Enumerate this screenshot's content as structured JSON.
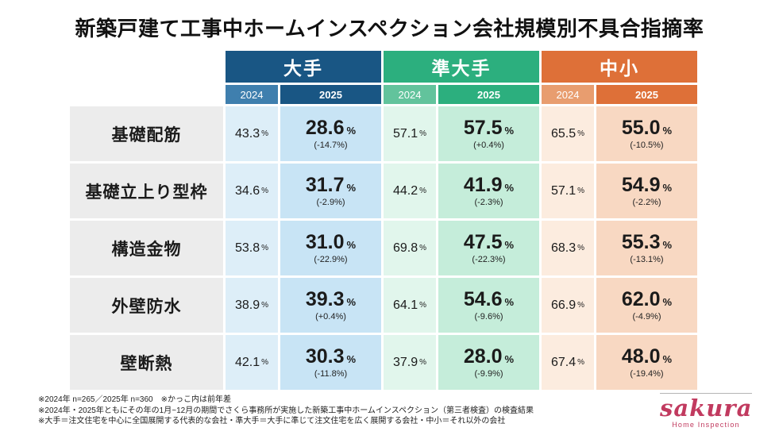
{
  "title": "新築戸建て工事中ホームインスペクション会社規模別不具合指摘率",
  "unit": "%",
  "colors": {
    "major": "#195684",
    "major_light": "#3f7fae",
    "major_c24": "#ddeef8",
    "major_c25": "#c8e4f5",
    "semi": "#2caf7e",
    "semi_light": "#62c39c",
    "semi_c24": "#e1f6ec",
    "semi_c25": "#c5edda",
    "small": "#de7038",
    "small_light": "#e89d6f",
    "small_c24": "#fcecdf",
    "small_c25": "#f8d8c2",
    "label_bg": "#ececec",
    "logo": "#c13a5f"
  },
  "chart_data": {
    "type": "table",
    "title": "新築戸建て工事中ホームインスペクション会社規模別不具合指摘率",
    "groups": [
      {
        "name": "大手",
        "years": [
          "2024",
          "2025"
        ]
      },
      {
        "name": "準大手",
        "years": [
          "2024",
          "2025"
        ]
      },
      {
        "name": "中小",
        "years": [
          "2024",
          "2025"
        ]
      }
    ],
    "rows": [
      {
        "label": "基礎配筋",
        "cells": [
          {
            "y2024": "43.3",
            "y2025": "28.6",
            "diff": "(-14.7%)"
          },
          {
            "y2024": "57.1",
            "y2025": "57.5",
            "diff": "(+0.4%)"
          },
          {
            "y2024": "65.5",
            "y2025": "55.0",
            "diff": "(-10.5%)"
          }
        ]
      },
      {
        "label": "基礎立上り型枠",
        "cells": [
          {
            "y2024": "34.6",
            "y2025": "31.7",
            "diff": "(-2.9%)"
          },
          {
            "y2024": "44.2",
            "y2025": "41.9",
            "diff": "(-2.3%)"
          },
          {
            "y2024": "57.1",
            "y2025": "54.9",
            "diff": "(-2.2%)"
          }
        ]
      },
      {
        "label": "構造金物",
        "cells": [
          {
            "y2024": "53.8",
            "y2025": "31.0",
            "diff": "(-22.9%)"
          },
          {
            "y2024": "69.8",
            "y2025": "47.5",
            "diff": "(-22.3%)"
          },
          {
            "y2024": "68.3",
            "y2025": "55.3",
            "diff": "(-13.1%)"
          }
        ]
      },
      {
        "label": "外壁防水",
        "cells": [
          {
            "y2024": "38.9",
            "y2025": "39.3",
            "diff": "(+0.4%)"
          },
          {
            "y2024": "64.1",
            "y2025": "54.6",
            "diff": "(-9.6%)"
          },
          {
            "y2024": "66.9",
            "y2025": "62.0",
            "diff": "(-4.9%)"
          }
        ]
      },
      {
        "label": "壁断熱",
        "cells": [
          {
            "y2024": "42.1",
            "y2025": "30.3",
            "diff": "(-11.8%)"
          },
          {
            "y2024": "37.9",
            "y2025": "28.0",
            "diff": "(-9.9%)"
          },
          {
            "y2024": "67.4",
            "y2025": "48.0",
            "diff": "(-19.4%)"
          }
        ]
      }
    ]
  },
  "footnotes": [
    "※2024年 n=265／2025年 n=360　※かっこ内は前年差",
    "※2024年・2025年ともにその年の1月~12月の期間でさくら事務所が実施した新築工事中ホームインスペクション（第三者検査）の検査結果",
    "※大手＝注文住宅を中心に全国展開する代表的な会社・準大手＝大手に準じて注文住宅を広く展開する会社・中小＝それ以外の会社"
  ],
  "logo": {
    "name": "sakura",
    "subtitle": "Home Inspection"
  }
}
